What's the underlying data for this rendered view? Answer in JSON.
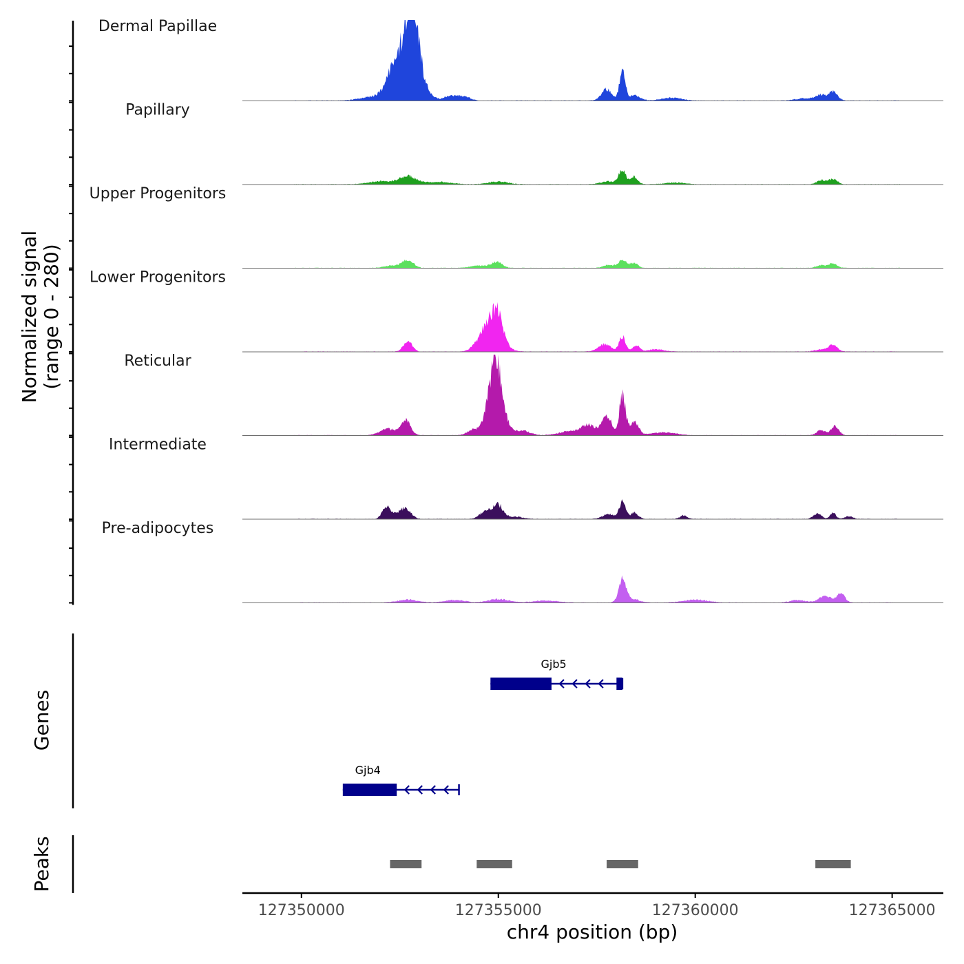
{
  "chart_data": {
    "type": "area",
    "chromosome": "chr4",
    "xlabel": "chr4 position (bp)",
    "ylabel": "Normalized signal",
    "ylabel_range": "(range 0 - 280)",
    "xlim": [
      127348500,
      127366300
    ],
    "ylim": [
      0,
      280
    ],
    "x_ticks": [
      127350000,
      127355000,
      127360000,
      127365000
    ],
    "x_tick_labels": [
      "127350000",
      "127355000",
      "127360000",
      "127365000"
    ],
    "signal_extent": [
      127349800,
      127365200
    ],
    "tracks": [
      {
        "name": "Dermal Papillae",
        "color": "#1f45dc",
        "peaks": [
          {
            "center": 127352450,
            "height": 95,
            "width": 220
          },
          {
            "center": 127352750,
            "height": 185,
            "width": 180
          },
          {
            "center": 127352850,
            "height": 160,
            "width": 140
          },
          {
            "center": 127352300,
            "height": 35,
            "width": 180
          },
          {
            "center": 127353100,
            "height": 40,
            "width": 180
          },
          {
            "center": 127351800,
            "height": 14,
            "width": 300
          },
          {
            "center": 127353750,
            "height": 15,
            "width": 150
          },
          {
            "center": 127354100,
            "height": 16,
            "width": 160
          },
          {
            "center": 127357750,
            "height": 38,
            "width": 130
          },
          {
            "center": 127358150,
            "height": 110,
            "width": 70
          },
          {
            "center": 127358450,
            "height": 18,
            "width": 150
          },
          {
            "center": 127359400,
            "height": 10,
            "width": 250
          },
          {
            "center": 127363200,
            "height": 18,
            "width": 130
          },
          {
            "center": 127363500,
            "height": 30,
            "width": 110
          },
          {
            "center": 127362800,
            "height": 8,
            "width": 250
          }
        ]
      },
      {
        "name": "Papillary",
        "color": "#1ea01e",
        "peaks": [
          {
            "center": 127352700,
            "height": 28,
            "width": 220
          },
          {
            "center": 127352000,
            "height": 10,
            "width": 300
          },
          {
            "center": 127353500,
            "height": 8,
            "width": 300
          },
          {
            "center": 127355000,
            "height": 9,
            "width": 250
          },
          {
            "center": 127358150,
            "height": 48,
            "width": 90
          },
          {
            "center": 127358450,
            "height": 25,
            "width": 90
          },
          {
            "center": 127357800,
            "height": 10,
            "width": 200
          },
          {
            "center": 127359500,
            "height": 6,
            "width": 250
          },
          {
            "center": 127363200,
            "height": 14,
            "width": 110
          },
          {
            "center": 127363500,
            "height": 18,
            "width": 110
          }
        ]
      },
      {
        "name": "Upper Progenitors",
        "color": "#5ce05e",
        "peaks": [
          {
            "center": 127352700,
            "height": 26,
            "width": 140
          },
          {
            "center": 127352300,
            "height": 8,
            "width": 200
          },
          {
            "center": 127354950,
            "height": 20,
            "width": 140
          },
          {
            "center": 127354500,
            "height": 8,
            "width": 200
          },
          {
            "center": 127357800,
            "height": 10,
            "width": 130
          },
          {
            "center": 127358150,
            "height": 26,
            "width": 110
          },
          {
            "center": 127358450,
            "height": 16,
            "width": 100
          },
          {
            "center": 127363200,
            "height": 9,
            "width": 120
          },
          {
            "center": 127363500,
            "height": 16,
            "width": 100
          }
        ]
      },
      {
        "name": "Lower Progenitors",
        "color": "#f125f0",
        "peaks": [
          {
            "center": 127352700,
            "height": 35,
            "width": 110
          },
          {
            "center": 127354850,
            "height": 95,
            "width": 230
          },
          {
            "center": 127355000,
            "height": 65,
            "width": 120
          },
          {
            "center": 127354600,
            "height": 25,
            "width": 200
          },
          {
            "center": 127357700,
            "height": 25,
            "width": 160
          },
          {
            "center": 127358150,
            "height": 52,
            "width": 80
          },
          {
            "center": 127358500,
            "height": 22,
            "width": 90
          },
          {
            "center": 127359000,
            "height": 8,
            "width": 200
          },
          {
            "center": 127363500,
            "height": 22,
            "width": 110
          },
          {
            "center": 127363200,
            "height": 8,
            "width": 150
          }
        ]
      },
      {
        "name": "Reticular",
        "color": "#b41aab",
        "peaks": [
          {
            "center": 127352200,
            "height": 22,
            "width": 200
          },
          {
            "center": 127352650,
            "height": 50,
            "width": 120
          },
          {
            "center": 127354950,
            "height": 250,
            "width": 120
          },
          {
            "center": 127354750,
            "height": 85,
            "width": 120
          },
          {
            "center": 127355200,
            "height": 40,
            "width": 120
          },
          {
            "center": 127354400,
            "height": 22,
            "width": 160
          },
          {
            "center": 127355600,
            "height": 16,
            "width": 200
          },
          {
            "center": 127357300,
            "height": 35,
            "width": 180
          },
          {
            "center": 127357750,
            "height": 70,
            "width": 120
          },
          {
            "center": 127358150,
            "height": 135,
            "width": 80
          },
          {
            "center": 127358450,
            "height": 45,
            "width": 110
          },
          {
            "center": 127356800,
            "height": 14,
            "width": 250
          },
          {
            "center": 127359200,
            "height": 10,
            "width": 300
          },
          {
            "center": 127363200,
            "height": 18,
            "width": 110
          },
          {
            "center": 127363550,
            "height": 30,
            "width": 100
          }
        ]
      },
      {
        "name": "Intermediate",
        "color": "#3b0f5c",
        "peaks": [
          {
            "center": 127352150,
            "height": 38,
            "width": 100
          },
          {
            "center": 127352650,
            "height": 35,
            "width": 130
          },
          {
            "center": 127352400,
            "height": 14,
            "width": 150
          },
          {
            "center": 127355000,
            "height": 45,
            "width": 120
          },
          {
            "center": 127354700,
            "height": 30,
            "width": 150
          },
          {
            "center": 127355400,
            "height": 8,
            "width": 200
          },
          {
            "center": 127357800,
            "height": 16,
            "width": 150
          },
          {
            "center": 127358150,
            "height": 58,
            "width": 80
          },
          {
            "center": 127358450,
            "height": 22,
            "width": 100
          },
          {
            "center": 127359700,
            "height": 12,
            "width": 90
          },
          {
            "center": 127363100,
            "height": 18,
            "width": 100
          },
          {
            "center": 127363500,
            "height": 22,
            "width": 70
          },
          {
            "center": 127363900,
            "height": 9,
            "width": 100
          }
        ]
      },
      {
        "name": "Pre-adipocytes",
        "color": "#c35ff0",
        "peaks": [
          {
            "center": 127358150,
            "height": 72,
            "width": 90
          },
          {
            "center": 127358350,
            "height": 14,
            "width": 200
          },
          {
            "center": 127355000,
            "height": 12,
            "width": 250
          },
          {
            "center": 127352700,
            "height": 10,
            "width": 250
          },
          {
            "center": 127353900,
            "height": 9,
            "width": 250
          },
          {
            "center": 127356200,
            "height": 7,
            "width": 300
          },
          {
            "center": 127360000,
            "height": 10,
            "width": 300
          },
          {
            "center": 127363300,
            "height": 22,
            "width": 160
          },
          {
            "center": 127363700,
            "height": 30,
            "width": 100
          },
          {
            "center": 127362600,
            "height": 8,
            "width": 200
          }
        ]
      }
    ],
    "genes_panel": {
      "label": "Genes",
      "genes": [
        {
          "name": "Gjb5",
          "strand": "-",
          "start": 127354800,
          "end": 127358150,
          "thick": [
            [
              127354800,
              127356350
            ],
            [
              127358000,
              127358150
            ]
          ],
          "row": 0
        },
        {
          "name": "Gjb4",
          "strand": "-",
          "start": 127351050,
          "end": 127354000,
          "thick": [
            [
              127351050,
              127352420
            ]
          ],
          "row": 1
        }
      ]
    },
    "peaks_panel": {
      "label": "Peaks",
      "intervals": [
        [
          127352250,
          127353050
        ],
        [
          127354450,
          127355350
        ],
        [
          127357750,
          127358550
        ],
        [
          127363050,
          127363950
        ]
      ]
    }
  }
}
